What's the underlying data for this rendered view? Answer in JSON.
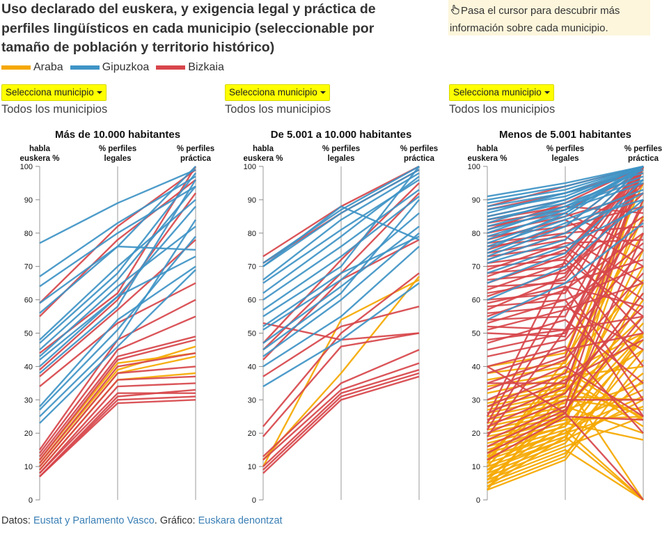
{
  "title": "Uso declarado del euskera, y exigencia legal y práctica de perfiles lingüísticos en cada municipio (seleccionable por tamaño de población y territorio histórico)",
  "hint": {
    "icon": "hand-pointer-icon",
    "text": "Pasa el cursor para descubrir más información sobre cada municipio."
  },
  "legend": [
    {
      "label": "Araba",
      "color": "#f5a800"
    },
    {
      "label": "Gipuzkoa",
      "color": "#3f94c6"
    },
    {
      "label": "Bizkaia",
      "color": "#d7464b"
    }
  ],
  "panels": [
    {
      "button_label": "Selecciona municipio",
      "selected": "Todos los municipios"
    },
    {
      "button_label": "Selecciona municipio",
      "selected": "Todos los municipios"
    },
    {
      "button_label": "Selecciona municipio",
      "selected": "Todos los municipios"
    }
  ],
  "footer": {
    "prefix": "Datos: ",
    "source_link": "Eustat y Parlamento Vasco",
    "middle": ". Gráfico: ",
    "author_link": "Euskara denontzat"
  },
  "chart_data": [
    {
      "type": "parallel-coordinates",
      "title": "Más de 10.000 habitantes",
      "axes": [
        "habla euskera %",
        "% perfiles legales",
        "% perfiles práctica"
      ],
      "ylim": [
        0,
        100
      ],
      "ticks": [
        0,
        10,
        20,
        30,
        40,
        50,
        60,
        70,
        80,
        90,
        100
      ],
      "series": [
        {
          "territory": "Gipuzkoa",
          "values": [
            [
              77,
              89,
              99
            ],
            [
              67,
              83,
              97
            ],
            [
              64,
              80,
              94
            ],
            [
              59,
              76,
              100
            ],
            [
              56,
              76,
              75
            ],
            [
              48,
              70,
              90
            ],
            [
              47,
              68,
              98
            ],
            [
              45,
              66,
              94
            ],
            [
              43,
              64,
              82
            ],
            [
              42,
              61,
              88
            ],
            [
              40,
              61,
              73
            ],
            [
              38,
              58,
              96
            ],
            [
              28,
              54,
              70
            ],
            [
              27,
              51,
              79
            ],
            [
              25,
              48,
              84
            ],
            [
              23,
              46,
              69
            ]
          ]
        },
        {
          "territory": "Bizkaia",
          "values": [
            [
              59,
              82,
              99
            ],
            [
              55,
              78,
              96
            ],
            [
              44,
              62,
              100
            ],
            [
              39,
              60,
              92
            ],
            [
              37,
              57,
              78
            ],
            [
              34,
              53,
              65
            ],
            [
              15,
              48,
              60
            ],
            [
              14,
              45,
              55
            ],
            [
              13,
              43,
              49
            ],
            [
              12,
              42,
              48
            ],
            [
              11,
              40,
              44
            ],
            [
              10,
              38,
              40
            ],
            [
              9,
              36,
              37
            ],
            [
              8,
              34,
              35
            ],
            [
              8,
              32,
              32
            ],
            [
              7,
              31,
              33
            ],
            [
              7,
              30,
              31
            ],
            [
              7,
              29,
              30
            ]
          ]
        },
        {
          "territory": "Araba",
          "values": [
            [
              12,
              41,
              44
            ],
            [
              11,
              39,
              46
            ],
            [
              10,
              38,
              43
            ],
            [
              9,
              36,
              38
            ]
          ]
        }
      ]
    },
    {
      "type": "parallel-coordinates",
      "title": "De 5.001 a 10.000 habitantes",
      "axes": [
        "habla euskera %",
        "% perfiles legales",
        "% perfiles práctica"
      ],
      "ylim": [
        0,
        100
      ],
      "ticks": [
        0,
        10,
        20,
        30,
        40,
        50,
        60,
        70,
        80,
        90,
        100
      ],
      "series": [
        {
          "territory": "Gipuzkoa",
          "values": [
            [
              71,
              87,
              100
            ],
            [
              70,
              86,
              99
            ],
            [
              66,
              84,
              98
            ],
            [
              65,
              81,
              96
            ],
            [
              62,
              79,
              97
            ],
            [
              60,
              76,
              93
            ],
            [
              57,
              73,
              91
            ],
            [
              55,
              70,
              100
            ],
            [
              52,
              68,
              79
            ],
            [
              51,
              66,
              86
            ],
            [
              47,
              64,
              82
            ],
            [
              45,
              62,
              90
            ],
            [
              43,
              60,
              80
            ],
            [
              40,
              55,
              76
            ],
            [
              34,
              48,
              65
            ],
            [
              70,
              88,
              78
            ]
          ]
        },
        {
          "territory": "Bizkaia",
          "values": [
            [
              73,
              88,
              100
            ],
            [
              71,
              86,
              99
            ],
            [
              47,
              72,
              95
            ],
            [
              45,
              68,
              92
            ],
            [
              42,
              66,
              78
            ],
            [
              37,
              52,
              58
            ],
            [
              22,
              50,
              68
            ],
            [
              19,
              46,
              50
            ],
            [
              13,
              35,
              45
            ],
            [
              12,
              33,
              41
            ],
            [
              10,
              32,
              39
            ],
            [
              9,
              31,
              38
            ],
            [
              8,
              30,
              37
            ],
            [
              53,
              48,
              50
            ]
          ]
        },
        {
          "territory": "Araba",
          "values": [
            [
              12,
              38,
              67
            ],
            [
              10,
              54,
              66
            ]
          ]
        }
      ]
    },
    {
      "type": "parallel-coordinates",
      "title": "Menos de 5.001 habitantes",
      "axes": [
        "habla euskera %",
        "% perfiles legales",
        "% perfiles práctica"
      ],
      "ylim": [
        0,
        100
      ],
      "ticks": [
        0,
        10,
        20,
        30,
        40,
        50,
        60,
        70,
        80,
        90,
        100
      ],
      "series": [
        {
          "territory": "Gipuzkoa",
          "values": [
            [
              91,
              95,
              100
            ],
            [
              90,
              94,
              100
            ],
            [
              89,
              93,
              100
            ],
            [
              88,
              92,
              100
            ],
            [
              87,
              91,
              100
            ],
            [
              86,
              92,
              98
            ],
            [
              85,
              90,
              100
            ],
            [
              84,
              89,
              97
            ],
            [
              83,
              90,
              100
            ],
            [
              82,
              88,
              96
            ],
            [
              81,
              87,
              100
            ],
            [
              80,
              88,
              99
            ],
            [
              79,
              86,
              100
            ],
            [
              78,
              87,
              95
            ],
            [
              77,
              85,
              100
            ],
            [
              76,
              84,
              93
            ],
            [
              75,
              86,
              100
            ],
            [
              74,
              83,
              90
            ],
            [
              73,
              82,
              100
            ],
            [
              72,
              80,
              92
            ],
            [
              71,
              78,
              100
            ],
            [
              68,
              76,
              88
            ],
            [
              65,
              74,
              96
            ],
            [
              60,
              70,
              90
            ],
            [
              54,
              65,
              83
            ]
          ]
        },
        {
          "territory": "Bizkaia",
          "values": [
            [
              88,
              94,
              100
            ],
            [
              87,
              92,
              99
            ],
            [
              85,
              90,
              100
            ],
            [
              84,
              88,
              86
            ],
            [
              83,
              87,
              98
            ],
            [
              82,
              86,
              75
            ],
            [
              81,
              89,
              100
            ],
            [
              80,
              85,
              92
            ],
            [
              79,
              82,
              100
            ],
            [
              78,
              84,
              70
            ],
            [
              77,
              80,
              95
            ],
            [
              76,
              79,
              65
            ],
            [
              75,
              82,
              88
            ],
            [
              74,
              78,
              100
            ],
            [
              73,
              76,
              60
            ],
            [
              72,
              80,
              82
            ],
            [
              71,
              74,
              100
            ],
            [
              70,
              72,
              55
            ],
            [
              69,
              77,
              78
            ],
            [
              68,
              70,
              100
            ],
            [
              67,
              75,
              50
            ],
            [
              66,
              68,
              92
            ],
            [
              65,
              73,
              100
            ],
            [
              64,
              65,
              72
            ],
            [
              63,
              71,
              40
            ],
            [
              62,
              66,
              95
            ],
            [
              61,
              69,
              85
            ],
            [
              60,
              62,
              100
            ],
            [
              59,
              64,
              30
            ],
            [
              58,
              60,
              70
            ],
            [
              57,
              67,
              100
            ],
            [
              56,
              58,
              45
            ],
            [
              55,
              63,
              80
            ],
            [
              54,
              55,
              100
            ],
            [
              53,
              60,
              25
            ],
            [
              52,
              51,
              88
            ],
            [
              51,
              57,
              65
            ],
            [
              50,
              49,
              100
            ],
            [
              48,
              51,
              55
            ],
            [
              47,
              54,
              35
            ],
            [
              45,
              50,
              100
            ],
            [
              43,
              48,
              75
            ],
            [
              40,
              46,
              20
            ],
            [
              38,
              45,
              50
            ],
            [
              35,
              43,
              100
            ],
            [
              33,
              42,
              68
            ],
            [
              30,
              40,
              25
            ],
            [
              28,
              38,
              90
            ],
            [
              26,
              36,
              48
            ],
            [
              24,
              34,
              100
            ],
            [
              22,
              32,
              62
            ],
            [
              20,
              30,
              30
            ],
            [
              18,
              28,
              100
            ],
            [
              16,
              27,
              55
            ],
            [
              14,
              26,
              80
            ],
            [
              12,
              25,
              24
            ],
            [
              25,
              72,
              100
            ],
            [
              23,
              64,
              58
            ],
            [
              21,
              58,
              77
            ],
            [
              19,
              51,
              84
            ],
            [
              35,
              35,
              58
            ],
            [
              40,
              26,
              0
            ]
          ]
        },
        {
          "territory": "Araba",
          "values": [
            [
              40,
              44,
              100
            ],
            [
              38,
              41,
              95
            ],
            [
              36,
              40,
              66
            ],
            [
              34,
              38,
              50
            ],
            [
              32,
              37,
              40
            ],
            [
              30,
              35,
              85
            ],
            [
              29,
              34,
              25
            ],
            [
              28,
              33,
              55
            ],
            [
              27,
              32,
              100
            ],
            [
              26,
              31,
              30
            ],
            [
              25,
              30,
              45
            ],
            [
              24,
              29,
              70
            ],
            [
              23,
              28,
              20
            ],
            [
              22,
              27,
              35
            ],
            [
              21,
              26,
              60
            ],
            [
              20,
              25,
              50
            ],
            [
              19,
              24,
              25
            ],
            [
              18,
              24,
              90
            ],
            [
              17,
              23,
              33
            ],
            [
              16,
              22,
              48
            ],
            [
              15,
              22,
              100
            ],
            [
              14,
              21,
              0
            ],
            [
              13,
              20,
              28
            ],
            [
              12,
              20,
              38
            ],
            [
              11,
              19,
              50
            ],
            [
              10,
              18,
              65
            ],
            [
              9,
              18,
              30
            ],
            [
              8,
              17,
              45
            ],
            [
              7,
              16,
              25
            ],
            [
              6,
              15,
              0
            ],
            [
              5,
              14,
              36
            ],
            [
              4,
              13,
              50
            ],
            [
              3,
              12,
              42
            ],
            [
              12,
              39,
              24
            ],
            [
              10,
              35,
              0
            ],
            [
              8,
              30,
              27
            ],
            [
              6,
              27,
              53
            ],
            [
              14,
              32,
              62
            ],
            [
              9,
              26,
              75
            ],
            [
              7,
              23,
              18
            ],
            [
              5,
              21,
              31
            ],
            [
              4,
              19,
              0
            ],
            [
              3,
              33,
              49
            ],
            [
              11,
              42,
              80
            ],
            [
              13,
              37,
              22
            ]
          ]
        }
      ]
    }
  ]
}
